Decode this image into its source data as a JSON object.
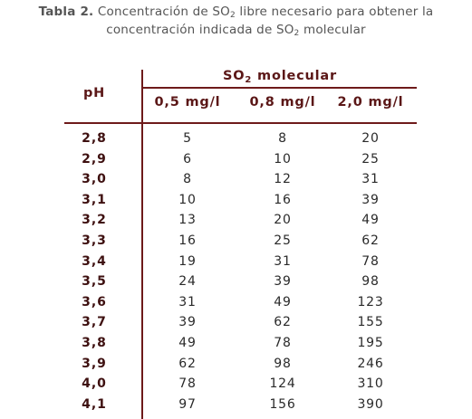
{
  "caption": {
    "label": "Tabla 2.",
    "line1_text": "Concentración de SO",
    "line1_sub": "2",
    "line1_rest": " libre necesario para obtener la",
    "line2_text": "concentración indicada de SO",
    "line2_sub": "2",
    "line2_rest": " molecular"
  },
  "table": {
    "row_header": "pH",
    "group_header_text": "SO",
    "group_header_sub": "2",
    "group_header_rest": " molecular",
    "columns": [
      "0,5 mg/l",
      "0,8 mg/l",
      "2,0 mg/l"
    ],
    "rows": [
      {
        "ph": "2,8",
        "values": [
          "5",
          "8",
          "20"
        ]
      },
      {
        "ph": "2,9",
        "values": [
          "6",
          "10",
          "25"
        ]
      },
      {
        "ph": "3,0",
        "values": [
          "8",
          "12",
          "31"
        ]
      },
      {
        "ph": "3,1",
        "values": [
          "10",
          "16",
          "39"
        ]
      },
      {
        "ph": "3,2",
        "values": [
          "13",
          "20",
          "49"
        ]
      },
      {
        "ph": "3,3",
        "values": [
          "16",
          "25",
          "62"
        ]
      },
      {
        "ph": "3,4",
        "values": [
          "19",
          "31",
          "78"
        ]
      },
      {
        "ph": "3,5",
        "values": [
          "24",
          "39",
          "98"
        ]
      },
      {
        "ph": "3,6",
        "values": [
          "31",
          "49",
          "123"
        ]
      },
      {
        "ph": "3,7",
        "values": [
          "39",
          "62",
          "155"
        ]
      },
      {
        "ph": "3,8",
        "values": [
          "49",
          "78",
          "195"
        ]
      },
      {
        "ph": "3,9",
        "values": [
          "62",
          "98",
          "246"
        ]
      },
      {
        "ph": "4,0",
        "values": [
          "78",
          "124",
          "310"
        ]
      },
      {
        "ph": "4,1",
        "values": [
          "97",
          "156",
          "390"
        ]
      }
    ]
  },
  "colors": {
    "header_text": "#5b1717",
    "rule": "#6e1a1a",
    "caption_text": "#555555",
    "cell_text": "#2a2a2a"
  }
}
